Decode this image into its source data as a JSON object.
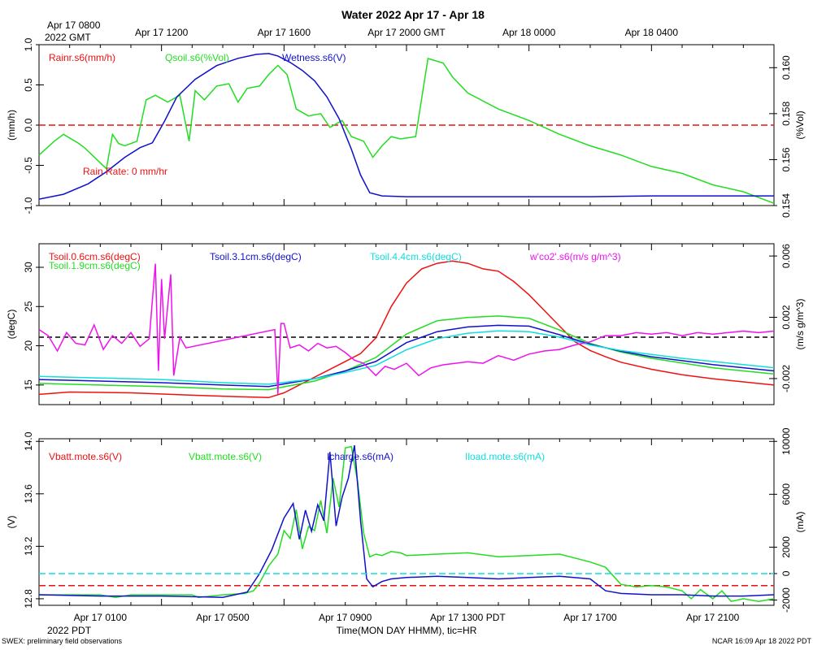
{
  "title": "Water 2022 Apr 17 - Apr 18",
  "gmt_label": {
    "line1": "Apr 17 0800",
    "line2": "2022 GMT"
  },
  "gmt_ticks": [
    "Apr 17 1200",
    "Apr 17 1600",
    "Apr 17 2000 GMT",
    "Apr 18 0000",
    "Apr 18 0400"
  ],
  "pdt_ticks": [
    "Apr 17 0100",
    "Apr 17 0500",
    "Apr 17 0900",
    "Apr 17 1300 PDT",
    "Apr 17 1700",
    "Apr 17 2100"
  ],
  "pdt_year": "2022 PDT",
  "xlabel": "Time(MON DAY HHMM), tic=HR",
  "footer_left": "SWEX: preliminary field observations",
  "footer_right": "NCAR 16:09 Apr 18 2022 PDT",
  "colors": {
    "red": "#ee1111",
    "green": "#22dd22",
    "blue": "#1111cc",
    "cyan": "#11dddd",
    "magenta": "#ee11ee",
    "black": "#000000"
  },
  "chart_data": [
    {
      "type": "line",
      "name": "water-panel",
      "x_hours": [
        0,
        24
      ],
      "ylabel_left": "(mm/h)",
      "ylim_left": [
        -1.0,
        1.0
      ],
      "yticks_left": [
        "-1.0",
        "-0.5",
        "0.0",
        "0.5",
        "1.0"
      ],
      "ylabel_right": "(%Vol)",
      "ylim_right": [
        0.154,
        0.161
      ],
      "yticks_right": [
        "0.154",
        "0.156",
        "0.158",
        "0.160"
      ],
      "annotation": "Rain Rate: 0 mm/hr",
      "legend": [
        "Rainr.s6(mm/h)",
        "Qsoil.s6(%Vol)",
        "Wetness.s6(V)"
      ],
      "series": [
        {
          "name": "Rainr.s6(mm/h)",
          "color": "red",
          "axis": "left",
          "style": "dashed",
          "x": [
            0,
            24
          ],
          "y": [
            0.0,
            0.0
          ]
        },
        {
          "name": "Qsoil.s6(%Vol)",
          "color": "green",
          "axis": "right",
          "x": [
            0,
            0.5,
            0.8,
            1.3,
            1.5,
            2.2,
            2.4,
            2.6,
            2.8,
            3.2,
            3.5,
            3.8,
            4.2,
            4.6,
            4.9,
            5.1,
            5.4,
            5.8,
            6.2,
            6.5,
            6.8,
            7.2,
            7.5,
            7.8,
            8.1,
            8.4,
            8.8,
            9.2,
            9.5,
            9.9,
            10.2,
            10.6,
            10.9,
            11.2,
            11.5,
            11.8,
            12.3,
            12.7,
            13.2,
            13.5,
            14,
            15,
            16,
            17,
            18,
            19,
            20,
            21,
            22,
            23,
            24
          ],
          "y": [
            0.1562,
            0.1568,
            0.1571,
            0.1567,
            0.1565,
            0.1556,
            0.1571,
            0.1567,
            0.1566,
            0.1568,
            0.1586,
            0.1588,
            0.1585,
            0.1588,
            0.1568,
            0.159,
            0.1586,
            0.1592,
            0.1593,
            0.1585,
            0.1591,
            0.1592,
            0.1597,
            0.1601,
            0.1597,
            0.1582,
            0.1579,
            0.158,
            0.1574,
            0.1577,
            0.157,
            0.1568,
            0.1561,
            0.1566,
            0.157,
            0.1569,
            0.157,
            0.1604,
            0.1602,
            0.1596,
            0.1589,
            0.1582,
            0.1577,
            0.1571,
            0.1566,
            0.1562,
            0.1557,
            0.1554,
            0.1549,
            0.1546,
            0.1541
          ]
        },
        {
          "name": "Wetness.s6(V)",
          "color": "blue",
          "axis": "left",
          "x": [
            0,
            0.8,
            1.6,
            2.2,
            2.8,
            3.3,
            3.7,
            4.1,
            4.5,
            5.1,
            5.8,
            6.5,
            7.1,
            7.5,
            7.8,
            8.2,
            8.6,
            9.0,
            9.4,
            9.8,
            10.2,
            10.5,
            10.8,
            11.2,
            12,
            14,
            16,
            18,
            20,
            22,
            24
          ],
          "y": [
            -0.92,
            -0.86,
            -0.73,
            -0.58,
            -0.4,
            -0.28,
            -0.22,
            0.05,
            0.35,
            0.57,
            0.74,
            0.83,
            0.88,
            0.89,
            0.86,
            0.78,
            0.68,
            0.55,
            0.35,
            0.08,
            -0.3,
            -0.62,
            -0.84,
            -0.88,
            -0.89,
            -0.89,
            -0.89,
            -0.89,
            -0.88,
            -0.88,
            -0.88
          ]
        }
      ]
    },
    {
      "type": "line",
      "name": "soil-temperature-panel",
      "x_hours": [
        0,
        24
      ],
      "ylabel_left": "(degC)",
      "ylim_left": [
        12.5,
        33.0
      ],
      "yticks_left": [
        "15",
        "20",
        "25",
        "30"
      ],
      "ylabel_right": "(m/s g/m^3)",
      "ylim_right": [
        -0.0037,
        0.0068
      ],
      "yticks_right": [
        "-0.002",
        "0.002",
        "0.006"
      ],
      "legend": [
        "Tsoil.0.6cm.s6(degC)",
        "Tsoil.1.9cm.s6(degC)",
        "Tsoil.3.1cm.s6(degC)",
        "Tsoil.4.4cm.s6(degC)",
        "w'co2'.s6(m/s g/m^3)"
      ],
      "series": [
        {
          "name": "Tsoil.0.6cm.s6(degC)",
          "color": "red",
          "axis": "left",
          "x": [
            0,
            1,
            3,
            5,
            6.5,
            7.5,
            8,
            9,
            10,
            10.5,
            11,
            11.5,
            12,
            12.5,
            13,
            13.5,
            14,
            14.5,
            15,
            15.5,
            16,
            16.5,
            17,
            17.5,
            18,
            18.5,
            19,
            20,
            21,
            22,
            23,
            24
          ],
          "y": [
            13.8,
            14.1,
            14.0,
            13.7,
            13.5,
            13.4,
            14.0,
            16.0,
            18.0,
            19.0,
            21.0,
            25.0,
            28.0,
            29.8,
            30.5,
            30.8,
            30.5,
            29.8,
            29.5,
            28.2,
            26.5,
            24.5,
            22.5,
            20.5,
            19.4,
            18.6,
            17.9,
            17.0,
            16.3,
            15.8,
            15.4,
            15.0
          ]
        },
        {
          "name": "Tsoil.1.9cm.s6(degC)",
          "color": "green",
          "axis": "left",
          "x": [
            0,
            2,
            4,
            6,
            7.5,
            9,
            10,
            11,
            12,
            13,
            14,
            15,
            16,
            17,
            18,
            19,
            20,
            21,
            22,
            23,
            24
          ],
          "y": [
            15.2,
            15.0,
            14.8,
            14.5,
            14.4,
            15.5,
            16.8,
            18.5,
            21.5,
            23.2,
            23.6,
            23.8,
            23.5,
            22.0,
            20.3,
            19.2,
            18.4,
            17.8,
            17.2,
            16.8,
            16.4
          ]
        },
        {
          "name": "Tsoil.3.1cm.s6(degC)",
          "color": "blue",
          "axis": "left",
          "x": [
            0,
            2,
            4,
            6,
            7.5,
            9,
            10,
            11,
            12,
            13,
            14,
            15,
            16,
            17,
            18,
            19,
            20,
            21,
            22,
            23,
            24
          ],
          "y": [
            15.7,
            15.5,
            15.3,
            15.0,
            14.8,
            15.8,
            16.8,
            18.0,
            20.4,
            21.8,
            22.4,
            22.6,
            22.5,
            21.4,
            20.2,
            19.3,
            18.6,
            18.1,
            17.6,
            17.2,
            16.8
          ]
        },
        {
          "name": "Tsoil.4.4cm.s6(degC)",
          "color": "cyan",
          "axis": "left",
          "x": [
            0,
            2,
            4,
            6,
            7.5,
            9,
            10,
            11,
            12,
            13,
            14,
            15,
            16,
            17,
            18,
            19,
            20,
            21,
            22,
            23,
            24
          ],
          "y": [
            16.1,
            15.9,
            15.7,
            15.3,
            15.1,
            15.8,
            16.6,
            17.5,
            19.5,
            20.9,
            21.6,
            21.9,
            21.8,
            21.1,
            20.1,
            19.4,
            18.9,
            18.4,
            18.0,
            17.6,
            17.2
          ]
        },
        {
          "name": "w'co2'.s6(m/s g/m^3)",
          "color": "magenta",
          "axis": "right",
          "x": [
            0,
            0.3,
            0.6,
            0.9,
            1.2,
            1.5,
            1.8,
            2.1,
            2.4,
            2.7,
            3.0,
            3.3,
            3.6,
            3.8,
            3.9,
            4.0,
            4.1,
            4.3,
            4.4,
            4.6,
            4.8,
            7.7,
            7.8,
            7.9,
            8.0,
            8.2,
            8.5,
            8.8,
            9.1,
            9.4,
            9.7,
            10,
            10.3,
            10.6,
            11,
            11.3,
            11.6,
            12,
            12.4,
            12.8,
            13.2,
            13.6,
            14,
            14.5,
            15,
            15.5,
            16,
            16.5,
            17,
            17.5,
            18,
            18.5,
            19,
            19.5,
            20,
            20.5,
            21,
            21.5,
            22,
            22.5,
            23,
            23.5,
            24
          ],
          "y": [
            0.0012,
            0.0008,
            -0.0002,
            0.001,
            0.0003,
            0.0002,
            0.0015,
            -0.0001,
            0.0008,
            0.0003,
            0.001,
            0.0001,
            0.0006,
            0.0055,
            -0.0015,
            0.0045,
            0.0006,
            0.0048,
            -0.0018,
            0.0007,
            0.0,
            0.0012,
            -0.003,
            0.0016,
            0.0016,
            0.0,
            0.0002,
            -0.0002,
            0.0003,
            0.0,
            0.0001,
            -0.0003,
            -0.0008,
            -0.001,
            -0.0018,
            -0.0012,
            -0.0014,
            -0.001,
            -0.0018,
            -0.0013,
            -0.0011,
            -0.001,
            -0.0009,
            -0.001,
            -0.0005,
            -0.0008,
            -0.0004,
            -0.0002,
            -0.0001,
            0.0002,
            0.0004,
            0.0008,
            0.0008,
            0.001,
            0.0009,
            0.001,
            0.0008,
            0.001,
            0.0009,
            0.001,
            0.0011,
            0.001,
            0.0011
          ]
        }
      ],
      "reference_line": {
        "axis": "right",
        "value": 0.0007,
        "style": "dashed",
        "color": "black"
      }
    },
    {
      "type": "line",
      "name": "power-panel",
      "x_hours": [
        0,
        24
      ],
      "ylabel_left": "(V)",
      "ylim_left": [
        12.75,
        14.02
      ],
      "yticks_left": [
        "12.8",
        "13.2",
        "13.6",
        "14.0"
      ],
      "ylabel_right": "(mA)",
      "ylim_right": [
        -2400,
        10200
      ],
      "yticks_right": [
        "-2000",
        "0",
        "2000",
        "6000",
        "10000"
      ],
      "legend": [
        "Vbatt.mote.s6(V)",
        "Vbatt.mote.s6(V)",
        "Icharge.s6(mA)",
        "Iload.mote.s6(mA)"
      ],
      "series": [
        {
          "name": "Vbatt.mote.s6(V)",
          "color": "red",
          "axis": "left",
          "style": "dashed",
          "x": [
            0,
            24
          ],
          "y": [
            12.9,
            12.9
          ]
        },
        {
          "name": "Vbatt.mote.s6(V)",
          "color": "green",
          "axis": "left",
          "x": [
            0,
            2,
            2.5,
            3,
            4,
            5,
            5.2,
            6,
            6.7,
            7,
            7.2,
            7.5,
            7.8,
            8,
            8.2,
            8.4,
            8.6,
            8.8,
            9,
            9.2,
            9.4,
            9.6,
            9.8,
            10,
            10.2,
            10.4,
            10.6,
            10.8,
            11,
            11.2,
            11.5,
            11.8,
            12,
            13,
            14,
            15,
            16,
            17,
            18,
            18.5,
            19,
            19.5,
            20,
            20.5,
            21,
            21.3,
            21.6,
            22,
            22.3,
            22.6,
            23,
            23.5,
            24
          ],
          "y": [
            12.83,
            12.83,
            12.81,
            12.83,
            12.83,
            12.83,
            12.81,
            12.83,
            12.84,
            12.86,
            12.92,
            13.05,
            13.14,
            13.32,
            13.26,
            13.48,
            13.18,
            13.35,
            13.32,
            13.55,
            13.3,
            13.72,
            13.5,
            13.95,
            13.96,
            13.7,
            13.3,
            13.12,
            13.14,
            13.13,
            13.16,
            13.15,
            13.13,
            13.14,
            13.15,
            13.12,
            13.13,
            13.14,
            13.08,
            13.04,
            12.91,
            12.89,
            12.9,
            12.89,
            12.86,
            12.8,
            12.87,
            12.8,
            12.86,
            12.78,
            12.8,
            12.78,
            12.8
          ]
        },
        {
          "name": "Icharge.s6(mA)",
          "color": "blue",
          "axis": "right",
          "x": [
            0,
            2,
            4,
            6,
            6.8,
            7.2,
            7.6,
            8,
            8.3,
            8.5,
            8.7,
            8.9,
            9.1,
            9.3,
            9.5,
            9.7,
            9.9,
            10.1,
            10.3,
            10.5,
            10.7,
            10.9,
            11.2,
            11.5,
            12,
            13,
            14,
            15,
            16,
            17,
            18,
            18.5,
            19,
            20,
            21,
            22,
            23,
            24
          ],
          "y": [
            -1600,
            -1700,
            -1700,
            -1800,
            -1400,
            0,
            1800,
            4200,
            5300,
            2600,
            4800,
            3200,
            5200,
            4000,
            9200,
            3600,
            5800,
            7200,
            9700,
            4000,
            -400,
            -1000,
            -600,
            -400,
            -300,
            -200,
            -300,
            -400,
            -300,
            -200,
            -400,
            -1300,
            -1500,
            -1600,
            -1600,
            -1700,
            -1700,
            -1600
          ]
        },
        {
          "name": "Iload.mote.s6(mA)",
          "color": "cyan",
          "axis": "right",
          "style": "dashed",
          "x": [
            0,
            24
          ],
          "y": [
            0,
            0
          ]
        }
      ]
    }
  ]
}
